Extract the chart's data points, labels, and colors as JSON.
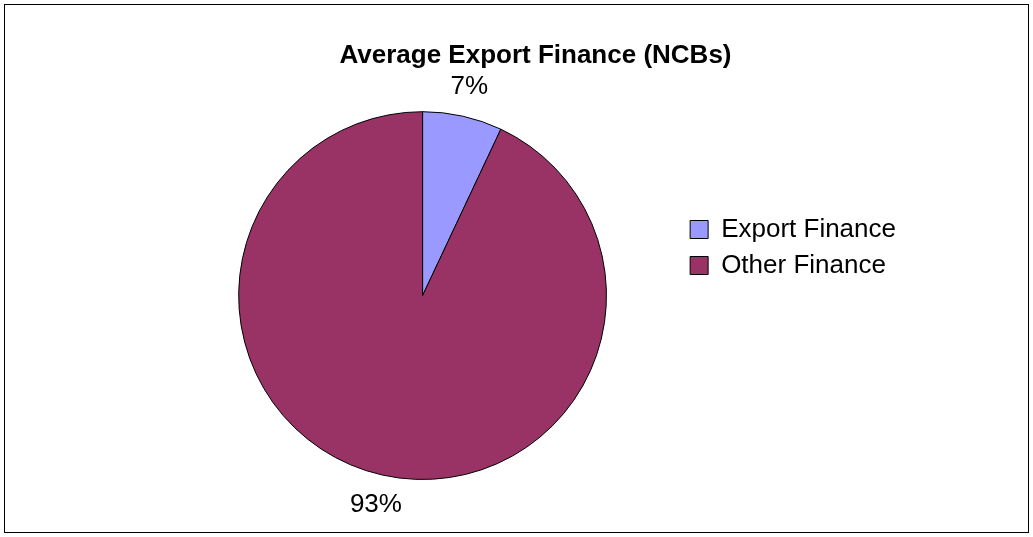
{
  "chart_data": {
    "type": "pie",
    "title": "Average Export Finance (NCBs)",
    "categories": [
      "Export Finance",
      "Other Finance"
    ],
    "values": [
      7,
      93
    ],
    "colors": [
      "#9999ff",
      "#993366"
    ],
    "value_labels": [
      "7%",
      "93%"
    ],
    "legend": "right"
  }
}
